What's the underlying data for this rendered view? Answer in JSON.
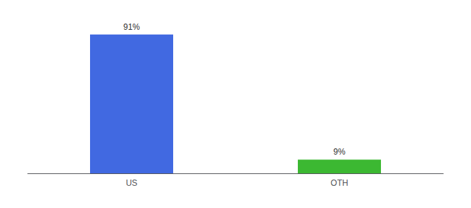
{
  "chart_data": {
    "type": "bar",
    "categories": [
      "US",
      "OTH"
    ],
    "values": [
      91,
      9
    ],
    "value_labels": [
      "91%",
      "9%"
    ],
    "colors": [
      "#4169e1",
      "#3cb832"
    ],
    "ylim": [
      0,
      100
    ],
    "grid": false,
    "data_labels": true,
    "tick_labels": "x"
  }
}
